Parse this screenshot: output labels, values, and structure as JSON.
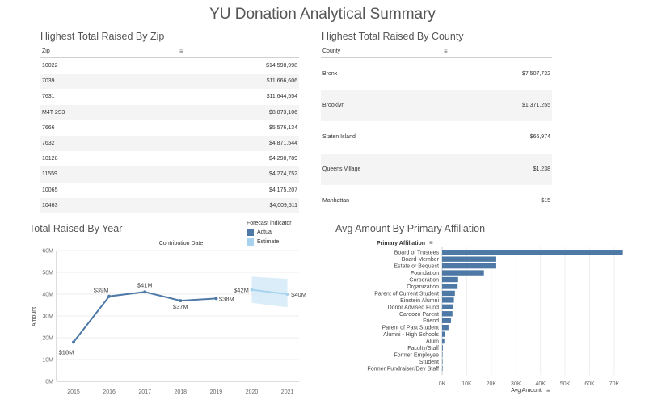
{
  "page_title": "YU Donation Analytical Summary",
  "zip_table": {
    "title": "Highest Total Raised By Zip",
    "column_header": "Zip",
    "rows": [
      {
        "key": "10022",
        "value": "$14,598,998"
      },
      {
        "key": "7039",
        "value": "$11,666,606"
      },
      {
        "key": "7631",
        "value": "$11,644,554"
      },
      {
        "key": "M4T 2S3",
        "value": "$8,873,106"
      },
      {
        "key": "7666",
        "value": "$5,576,134"
      },
      {
        "key": "7632",
        "value": "$4,871,544"
      },
      {
        "key": "10128",
        "value": "$4,298,789"
      },
      {
        "key": "11559",
        "value": "$4,274,752"
      },
      {
        "key": "10065",
        "value": "$4,175,207"
      },
      {
        "key": "10463",
        "value": "$4,009,511"
      }
    ]
  },
  "county_table": {
    "title": "Highest Total Raised By County",
    "column_header": "County",
    "rows": [
      {
        "key": "Bronx",
        "value": "$7,507,732"
      },
      {
        "key": "Brooklyn",
        "value": "$1,371,255"
      },
      {
        "key": "Staten Island",
        "value": "$66,974"
      },
      {
        "key": "Queens Village",
        "value": "$1,238"
      },
      {
        "key": "Manhattan",
        "value": "$15"
      }
    ]
  },
  "legend": {
    "title": "Forecast indicator",
    "items": [
      {
        "label": "Actual",
        "color": "#4e79a7"
      },
      {
        "label": "Estimate",
        "color": "#a8d3ee"
      }
    ]
  },
  "chart_data": [
    {
      "type": "line",
      "title": "Total Raised By Year",
      "subtitle": "Contribution Date",
      "xlabel": "",
      "ylabel": "Amount",
      "x": [
        "2015",
        "2016",
        "2017",
        "2018",
        "2019",
        "2020",
        "2021"
      ],
      "y_ticks": [
        "0M",
        "10M",
        "20M",
        "30M",
        "40M",
        "50M",
        "60M"
      ],
      "ylim": [
        0,
        60
      ],
      "series": [
        {
          "name": "Actual",
          "color": "#4e79a7",
          "points": [
            {
              "x": "2015",
              "y": 18,
              "label": "$18M"
            },
            {
              "x": "2016",
              "y": 39,
              "label": "$39M"
            },
            {
              "x": "2017",
              "y": 41,
              "label": "$41M"
            },
            {
              "x": "2018",
              "y": 37,
              "label": "$37M"
            },
            {
              "x": "2019",
              "y": 38,
              "label": "$38M"
            }
          ]
        },
        {
          "name": "Estimate",
          "color": "#a8d3ee",
          "points": [
            {
              "x": "2020",
              "y": 42,
              "label": "$42M"
            },
            {
              "x": "2021",
              "y": 40,
              "label": "$40M"
            }
          ],
          "band": {
            "x": [
              "2020",
              "2021"
            ],
            "lower": [
              36,
              34
            ],
            "upper": [
              48,
              47
            ]
          }
        }
      ]
    },
    {
      "type": "bar",
      "orientation": "horizontal",
      "title": "Avg Amount By Primary Affiliation",
      "category_header": "Primary Affiliation",
      "xlabel": "Avg Amount",
      "x_ticks": [
        "0K",
        "10K",
        "20K",
        "30K",
        "40K",
        "50K",
        "60K",
        "70K"
      ],
      "xlim": [
        0,
        70
      ],
      "bar_color": "#4e79a7",
      "categories": [
        "Board of Trustees",
        "Board Member",
        "Estate or Bequest",
        "Foundation",
        "Corporation",
        "Organization",
        "Parent of Current Student",
        "Einstein Alumni",
        "Donor Advised Fund",
        "Cardozo Parent",
        "Friend",
        "Parent of Past Student",
        "Alumni - High Schools",
        "Alum",
        "Faculty/Staff",
        "Former Employee",
        "Student",
        "Former Fundraiser/Dev Staff"
      ],
      "values": [
        73.5,
        22,
        22,
        17,
        6.5,
        6.3,
        5.2,
        4.8,
        4.5,
        4.2,
        3.6,
        2.6,
        1.3,
        0.9,
        0.3,
        0.15,
        0.08,
        0.05
      ]
    }
  ]
}
